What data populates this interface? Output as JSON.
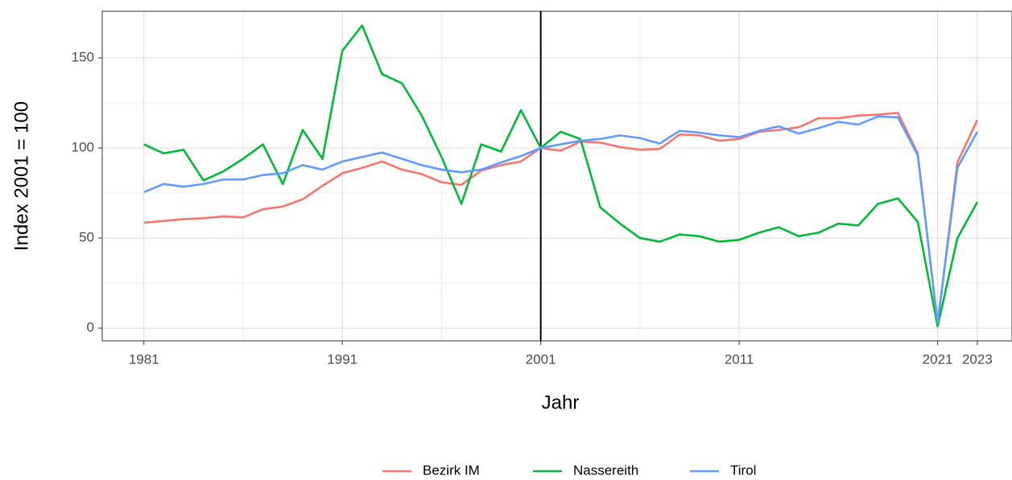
{
  "chart_data": {
    "type": "line",
    "xlabel": "Jahr",
    "ylabel": "Index 2001 = 100",
    "x": [
      1981,
      1982,
      1983,
      1984,
      1985,
      1986,
      1987,
      1988,
      1989,
      1990,
      1991,
      1992,
      1993,
      1994,
      1995,
      1996,
      1997,
      1998,
      1999,
      2000,
      2001,
      2002,
      2003,
      2004,
      2005,
      2006,
      2007,
      2008,
      2009,
      2010,
      2011,
      2012,
      2013,
      2014,
      2015,
      2016,
      2017,
      2018,
      2019,
      2020,
      2021,
      2022,
      2023
    ],
    "series": [
      {
        "name": "Bezirk IM",
        "color": "#f8766d",
        "values": [
          58.5,
          59.5,
          60.5,
          61,
          62,
          61.5,
          66,
          67.5,
          71.5,
          79,
          86,
          89,
          92.5,
          88,
          85.5,
          81,
          79.5,
          87.5,
          90.5,
          92.5,
          100,
          98.5,
          103.5,
          103,
          100.5,
          99,
          99.5,
          107.5,
          107,
          104,
          105,
          109,
          110,
          111.5,
          116.5,
          116.5,
          118,
          118.5,
          119.5,
          97,
          2,
          92,
          115.5
        ]
      },
      {
        "name": "Nassereith",
        "color": "#00ba38",
        "values": [
          102,
          97,
          99,
          82,
          87,
          94,
          102,
          80,
          110,
          94,
          154,
          168,
          141,
          136,
          118,
          95,
          69,
          102,
          98,
          121,
          100,
          109,
          105,
          67,
          58,
          50,
          48,
          52,
          51,
          48,
          49,
          53,
          56,
          51,
          53,
          58,
          57,
          69,
          72,
          59,
          1,
          50,
          70
        ]
      },
      {
        "name": "Tirol",
        "color": "#619cff",
        "values": [
          75.5,
          80,
          78.5,
          80,
          82.5,
          82.5,
          85,
          86,
          90.5,
          88,
          92.5,
          95,
          97.5,
          94,
          90.5,
          88,
          86.5,
          88,
          92,
          95.5,
          100,
          102,
          104,
          105,
          107,
          105.5,
          102.5,
          109.5,
          108.5,
          107,
          106,
          109.5,
          112,
          108,
          111,
          114.5,
          113,
          117.5,
          117,
          96,
          3,
          89,
          109
        ]
      }
    ],
    "xlim": [
      1978.9,
      2024.75
    ],
    "xticks": [
      1981,
      1991,
      2001,
      2011,
      2021,
      2023
    ],
    "ylim": [
      -7.1,
      175.9
    ],
    "yticks": [
      0,
      50,
      100,
      150
    ],
    "vline": 2001,
    "grid": true,
    "legend": "bottom"
  }
}
